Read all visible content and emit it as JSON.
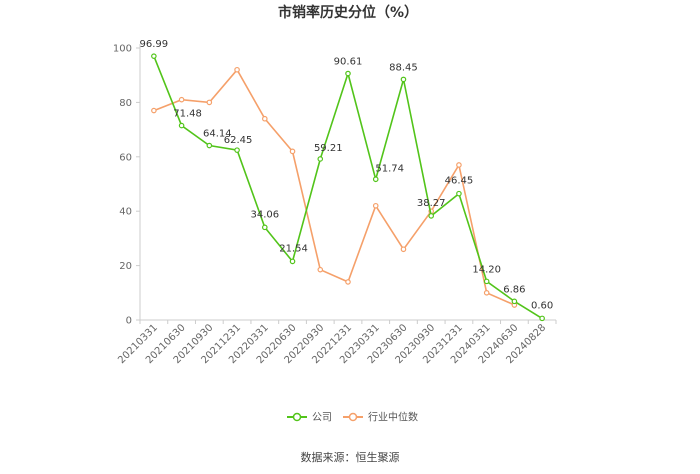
{
  "source": "数据来源：恒生聚源",
  "chart_data": {
    "type": "line",
    "title": "市销率历史分位（%）",
    "xlabel": "",
    "ylabel": "",
    "ylim": [
      0,
      100
    ],
    "yticks": [
      0,
      20,
      40,
      60,
      80,
      100
    ],
    "grid": false,
    "legend_position": "bottom",
    "categories": [
      "20210331",
      "20210630",
      "20210930",
      "20211231",
      "20220331",
      "20220630",
      "20220930",
      "20221231",
      "20230331",
      "20230630",
      "20230930",
      "20231231",
      "20240331",
      "20240630",
      "20240828"
    ],
    "series": [
      {
        "name": "公司",
        "color": "#52c41a",
        "labels_shown": true,
        "values": [
          96.99,
          71.48,
          64.14,
          62.45,
          34.06,
          21.54,
          59.21,
          90.61,
          51.74,
          88.45,
          38.27,
          46.45,
          14.2,
          6.86,
          0.6
        ],
        "labels": [
          "96.99",
          "71.48",
          "64.14",
          "62.45",
          "34.06",
          "21.54",
          "59.21",
          "90.61",
          "51.74",
          "88.45",
          "38.27",
          "46.45",
          "14.20",
          "6.86",
          "0.60"
        ]
      },
      {
        "name": "行业中位数",
        "color": "#f5a06a",
        "labels_shown": false,
        "values": [
          77,
          81,
          80,
          92,
          74,
          62,
          18.5,
          14,
          42,
          26,
          40,
          57,
          10,
          5.5,
          null
        ]
      }
    ]
  }
}
